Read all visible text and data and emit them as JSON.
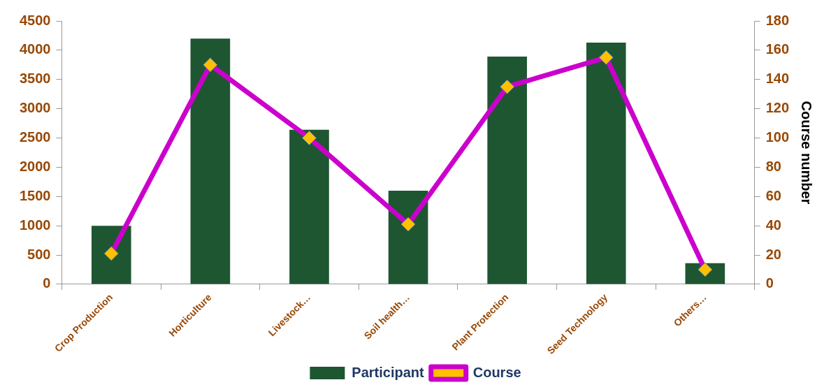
{
  "chart_data": {
    "type": "bar",
    "categories": [
      "Crop Production",
      "Horticulture",
      "Livestock…",
      "Soil health…",
      "Plant Protection",
      "Seed Technology",
      "Others…"
    ],
    "series": [
      {
        "name": "Participant",
        "color": "#1e5631",
        "values": [
          1000,
          4200,
          2640,
          1600,
          3890,
          4130,
          360
        ]
      },
      {
        "name": "Course",
        "type": "line",
        "axis": "y2",
        "color": "#cc00cc",
        "marker": "diamond",
        "values": [
          21,
          150,
          100,
          41,
          135,
          155,
          10
        ]
      }
    ],
    "y2label": "Course number",
    "ylim": [
      0,
      4500
    ],
    "yticks": [
      0,
      500,
      1000,
      1500,
      2000,
      2500,
      3000,
      3500,
      4000,
      4500
    ],
    "y2lim": [
      0,
      180
    ],
    "y2ticks": [
      0,
      20,
      40,
      60,
      80,
      100,
      120,
      140,
      160,
      180
    ],
    "grid": false,
    "legend": "bottom"
  }
}
